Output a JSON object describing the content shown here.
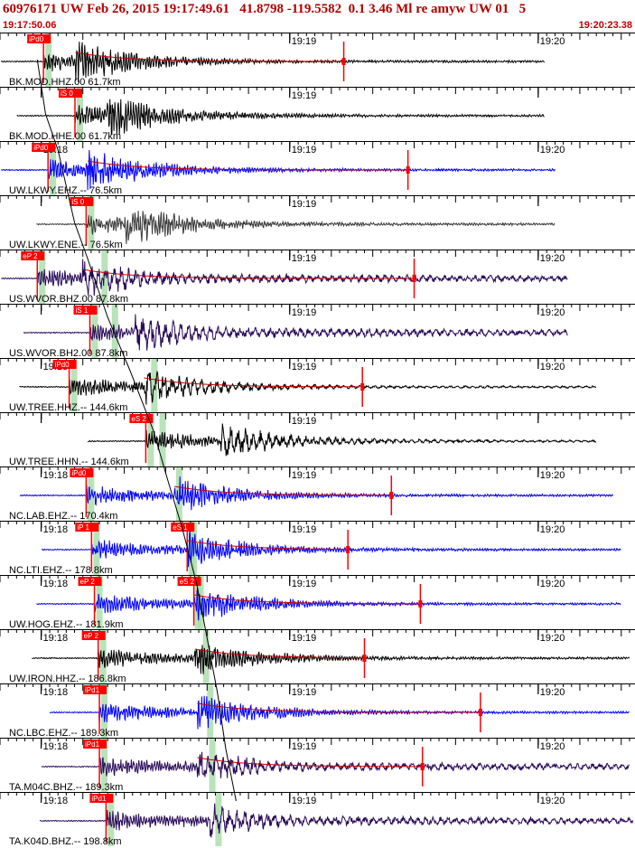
{
  "header": {
    "title": "60976171 UW Feb 26, 2015 19:17:49.61   41.8798 -119.5582  0.1 3.46 Ml re amyw UW 01   5",
    "start_time": "19:17:50.06",
    "end_time": "19:20:23.38"
  },
  "colors": {
    "title": "#b00000",
    "pick_box": "#ff0000",
    "pick_text": "#ffffff",
    "highlight": "#a8dca8",
    "coda_curve": "#cc0000",
    "arrival_curve": "#000000",
    "blue_trace": "#0000ff",
    "black_trace": "#000000",
    "purple_trace": "#2a0a5a",
    "gray_trace": "#3a3a3a",
    "amp_marker": "#ff0000"
  },
  "chart_data": {
    "type": "seismogram",
    "x_unit": "seconds after 19:17:50.06",
    "xlim": [
      0,
      153.32
    ],
    "minute_ticks": [
      {
        "label": "19:18",
        "t": 9.94
      },
      {
        "label": "19:19",
        "t": 69.94
      },
      {
        "label": "19:20",
        "t": 129.94
      }
    ],
    "traces": [
      {
        "label": "BK.MOD.HHZ.00 61.7km",
        "distance_km": 61.7,
        "color": "black",
        "pick": "iPd0",
        "pick_t": 10.5,
        "s_pick": null,
        "data_end_t": 131.5,
        "amp_marker_t": 83.0,
        "show_18": false,
        "show_20": true
      },
      {
        "label": "BK.MOD.HHE.00 61.7km",
        "distance_km": 61.7,
        "color": "black",
        "pick": "iS 0",
        "pick_t": 18.1,
        "s_pick": null,
        "data_end_t": 131.5,
        "amp_marker_t": null,
        "show_18": false,
        "show_20": false
      },
      {
        "label": "UW.LKWY.EHZ.-- 76.5km",
        "distance_km": 76.5,
        "color": "blue",
        "pick": "iPd0",
        "pick_t": 11.6,
        "s_pick": null,
        "data_end_t": 134.0,
        "amp_marker_t": 98.5,
        "show_18": true,
        "show_20": true
      },
      {
        "label": "UW.LKWY.ENE.-- 76.5km",
        "distance_km": 76.5,
        "color": "gray",
        "pick": "iS 0",
        "pick_t": 20.8,
        "s_pick": null,
        "data_end_t": 134.0,
        "amp_marker_t": null,
        "show_18": false,
        "show_20": false
      },
      {
        "label": "US.WVOR.BHZ.00 87.8km",
        "distance_km": 87.8,
        "color": "purple",
        "pick": "eP 2",
        "pick_t": 9.0,
        "s_pick": null,
        "data_end_t": 137.0,
        "amp_marker_t": 100.0,
        "show_18": false,
        "show_20": true
      },
      {
        "label": "US.WVOR.BH2.00 87.8km",
        "distance_km": 87.8,
        "color": "purple",
        "pick": "iS 1",
        "pick_t": 21.7,
        "s_pick": null,
        "data_end_t": 137.0,
        "amp_marker_t": null,
        "show_18": false,
        "show_20": true
      },
      {
        "label": "UW.TREE.HHZ.-- 144.6km",
        "distance_km": 144.6,
        "color": "black",
        "pick": "iPd0",
        "pick_t": 16.7,
        "s_pick": null,
        "data_end_t": 144.0,
        "amp_marker_t": 87.5,
        "show_18": true,
        "show_20": true
      },
      {
        "label": "UW.TREE.HHN.-- 144.6km",
        "distance_km": 144.6,
        "color": "black",
        "pick": "eS 2",
        "pick_t": 35.2,
        "s_pick": null,
        "data_end_t": 144.0,
        "amp_marker_t": null,
        "show_18": false,
        "show_20": false
      },
      {
        "label": "NC.LAB.EHZ.-- 170.4km",
        "distance_km": 170.4,
        "color": "blue",
        "pick": "iPd0",
        "pick_t": 20.8,
        "s_pick": null,
        "data_end_t": 148.0,
        "amp_marker_t": 94.5,
        "show_18": true,
        "show_20": true
      },
      {
        "label": "NC.LTI.EHZ.-- 178.8km",
        "distance_km": 178.8,
        "color": "blue",
        "pick": "iP 1",
        "pick_t": 22.1,
        "s_pick": "eS 1",
        "s_pick_t": 45.2,
        "data_end_t": 150.0,
        "amp_marker_t": 84.0,
        "show_18": true,
        "show_20": true
      },
      {
        "label": "UW.HOG.EHZ.-- 181.9km",
        "distance_km": 181.9,
        "color": "blue",
        "pick": "eP 2",
        "pick_t": 22.8,
        "s_pick": "eS 2",
        "s_pick_t": 46.8,
        "data_end_t": 150.0,
        "amp_marker_t": 101.5,
        "show_18": true,
        "show_20": true
      },
      {
        "label": "UW.IRON.HHZ.-- 186.8km",
        "distance_km": 186.8,
        "color": "black",
        "pick": "eP 2",
        "pick_t": 23.7,
        "s_pick": null,
        "data_end_t": 152.0,
        "amp_marker_t": 88.0,
        "show_18": true,
        "show_20": true
      },
      {
        "label": "NC.LBC.EHZ.-- 189.3km",
        "distance_km": 189.3,
        "color": "blue",
        "pick": "iPd1",
        "pick_t": 24.0,
        "s_pick": null,
        "data_end_t": 152.0,
        "amp_marker_t": 116.0,
        "show_18": true,
        "show_20": true
      },
      {
        "label": "TA.M04C.BHZ.-- 189.3km",
        "distance_km": 189.3,
        "color": "purple",
        "pick": "iPd1",
        "pick_t": 24.0,
        "s_pick": null,
        "data_end_t": 152.0,
        "amp_marker_t": 102.0,
        "show_18": true,
        "show_20": true
      },
      {
        "label": "TA.K04D.BHZ.-- 198.8km",
        "distance_km": 198.8,
        "color": "purple",
        "pick": "iPd1",
        "pick_t": 25.6,
        "s_pick": null,
        "data_end_t": 153.0,
        "amp_marker_t": null,
        "show_18": true,
        "show_20": true
      }
    ]
  }
}
